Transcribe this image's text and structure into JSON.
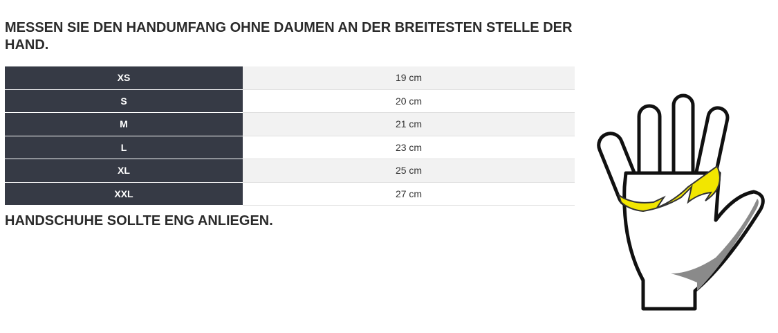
{
  "header": {
    "title": "MESSEN SIE DEN HANDUMFANG OHNE DAUMEN AN DER BREITESTEN STELLE DER HAND."
  },
  "table": {
    "rows": [
      [
        "XS",
        "19 cm"
      ],
      [
        "S",
        "20 cm"
      ],
      [
        "M",
        "21 cm"
      ],
      [
        "L",
        "23 cm"
      ],
      [
        "XL",
        "25 cm"
      ],
      [
        "XXL",
        "27 cm"
      ]
    ]
  },
  "note": "HANDSCHUHE SOLLTE ENG ANLIEGEN."
}
